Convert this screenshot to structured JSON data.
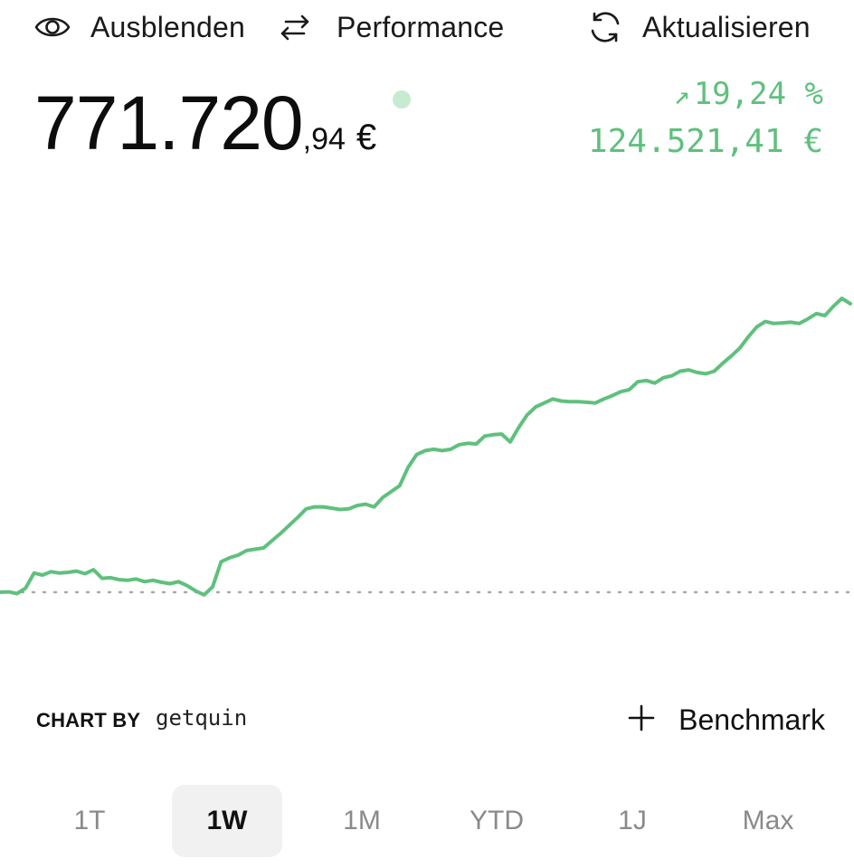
{
  "toolbar": {
    "hide_label": "Ausblenden",
    "performance_label": "Performance",
    "refresh_label": "Aktualisieren"
  },
  "portfolio": {
    "value_int": "771.720",
    "value_dec": ",94",
    "currency": "€",
    "change_arrow": "↗",
    "change_pct": "19,24 %",
    "change_abs": "124.521,41 €"
  },
  "colors": {
    "positive": "#5fc07d",
    "line": "#5fc07d",
    "live_dot": "#c6ebd1",
    "baseline": "#a8a8a8",
    "active_range_bg": "#f1f1f1"
  },
  "footer": {
    "chart_by": "CHART BY",
    "brand": "getquin",
    "benchmark_label": "Benchmark"
  },
  "ranges": [
    {
      "label": "1T",
      "active": false
    },
    {
      "label": "1W",
      "active": true
    },
    {
      "label": "1M",
      "active": false
    },
    {
      "label": "YTD",
      "active": false
    },
    {
      "label": "1J",
      "active": false
    },
    {
      "label": "Max",
      "active": false
    }
  ],
  "icons": {
    "hide": "eye-icon",
    "performance": "swap-arrows-icon",
    "refresh": "refresh-icon",
    "benchmark": "plus-icon"
  },
  "chart_data": {
    "type": "line",
    "baseline_style": "dotted",
    "grid": false,
    "x": [
      0,
      1,
      2,
      3,
      4,
      5,
      6,
      7,
      8,
      9,
      10,
      11,
      12,
      13,
      14,
      15,
      16,
      17,
      18,
      19,
      20,
      21,
      22,
      23,
      24,
      25,
      26,
      27,
      28,
      29,
      30,
      31,
      32,
      33,
      34,
      35,
      36,
      37,
      38,
      39,
      40,
      41,
      42,
      43,
      44,
      45,
      46,
      47,
      48,
      49,
      50,
      51,
      52,
      53,
      54,
      55,
      56,
      57,
      58,
      59,
      60,
      61,
      62,
      63,
      64,
      65,
      66,
      67,
      68,
      69,
      70,
      71,
      72,
      73,
      74,
      75,
      76,
      77,
      78,
      79,
      80,
      81,
      82,
      83,
      84,
      85,
      86,
      87,
      88,
      89,
      90,
      91,
      92,
      93,
      94,
      95,
      96,
      97,
      98,
      99,
      100
    ],
    "series": [
      {
        "values": [
          0.0,
          0.05,
          -0.2,
          0.6,
          2.9,
          2.6,
          3.1,
          2.9,
          3.0,
          3.2,
          2.8,
          3.4,
          2.1,
          2.2,
          1.9,
          1.8,
          2.0,
          1.6,
          1.8,
          1.5,
          1.3,
          1.6,
          1.0,
          0.2,
          -0.4,
          0.8,
          4.6,
          5.2,
          5.6,
          6.3,
          6.5,
          6.7,
          7.8,
          8.9,
          10.1,
          11.3,
          12.6,
          12.9,
          12.9,
          12.7,
          12.5,
          12.6,
          13.1,
          13.3,
          12.9,
          14.3,
          15.2,
          16.1,
          18.9,
          20.8,
          21.4,
          21.6,
          21.4,
          21.6,
          22.3,
          22.5,
          22.4,
          23.6,
          23.8,
          23.9,
          22.7,
          24.9,
          26.8,
          28.0,
          28.6,
          29.2,
          28.9,
          28.8,
          28.8,
          28.7,
          28.6,
          29.2,
          29.7,
          30.3,
          30.6,
          31.8,
          32.0,
          31.6,
          32.4,
          32.7,
          33.4,
          33.6,
          33.2,
          33.0,
          33.4,
          34.6,
          35.7,
          36.9,
          38.6,
          40.1,
          40.9,
          40.6,
          40.7,
          40.8,
          40.6,
          41.3,
          42.1,
          41.8,
          43.2,
          44.4,
          43.6
        ]
      }
    ]
  }
}
